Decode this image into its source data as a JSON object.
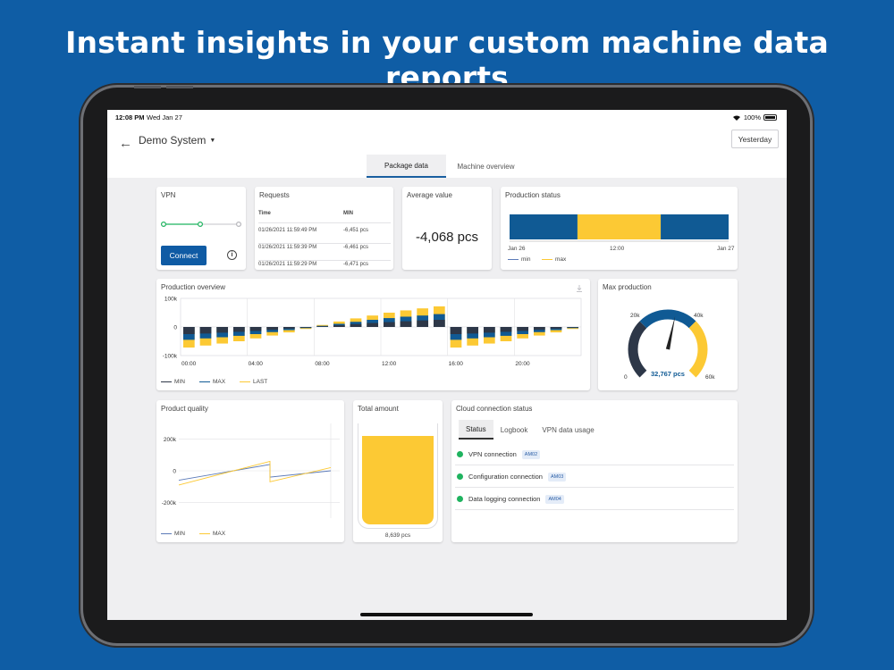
{
  "headline": "Instant insights in your custom machine data reports",
  "status_bar": {
    "time": "12:08 PM",
    "date": "Wed Jan 27",
    "battery": "100%"
  },
  "app_bar": {
    "system": "Demo System",
    "date_button": "Yesterday"
  },
  "tabs": [
    {
      "label": "Package data",
      "active": true
    },
    {
      "label": "Machine overview",
      "active": false
    }
  ],
  "vpn": {
    "title": "VPN",
    "connect_label": "Connect",
    "info_icon": "info-icon",
    "info_glyph": "i"
  },
  "requests": {
    "title": "Requests",
    "headers": [
      "Time",
      "MIN"
    ],
    "rows": [
      [
        "01/26/2021 11:59:49 PM",
        "-6,451 pcs"
      ],
      [
        "01/26/2021 11:59:39 PM",
        "-6,461 pcs"
      ],
      [
        "01/26/2021 11:59:29 PM",
        "-6,471 pcs"
      ]
    ]
  },
  "average_value": {
    "title": "Average value",
    "value": "-4,068 pcs"
  },
  "production_status": {
    "title": "Production status",
    "x_labels": [
      "Jan 26",
      "12:00",
      "Jan 27"
    ],
    "legend": [
      "min",
      "max"
    ],
    "segments": [
      {
        "from": 0,
        "to": 0.31,
        "color": "#105a94"
      },
      {
        "from": 0.31,
        "to": 0.69,
        "color": "#fcc934"
      },
      {
        "from": 0.69,
        "to": 1.0,
        "color": "#105a94"
      }
    ]
  },
  "production_overview": {
    "title": "Production overview",
    "download_icon": "download-icon",
    "legend": [
      "MIN",
      "MAX",
      "LAST"
    ]
  },
  "max_production": {
    "title": "Max production",
    "value": "32,767 pcs",
    "ticks": [
      "0",
      "20k",
      "40k",
      "60k"
    ]
  },
  "product_quality": {
    "title": "Product quality",
    "legend": [
      "MIN",
      "MAX"
    ]
  },
  "total_amount": {
    "title": "Total amount",
    "value": "8,639 pcs",
    "fill_fraction": 0.85
  },
  "cloud_status": {
    "title": "Cloud connection status",
    "tabs": [
      "Status",
      "Logbook",
      "VPN data usage"
    ],
    "rows": [
      {
        "label": "VPN connection",
        "badge": "AM02"
      },
      {
        "label": "Configuration connection",
        "badge": "AM03"
      },
      {
        "label": "Data logging connection",
        "badge": "AM04"
      }
    ]
  },
  "colors": {
    "brand": "#0f5da5",
    "navy": "#105a94",
    "dark": "#2d3748",
    "yellow": "#fcc934",
    "green": "#1fb35f"
  },
  "chart_data": [
    {
      "type": "bar",
      "title": "Production overview",
      "ylim": [
        -100000,
        100000
      ],
      "yticks": [
        "100k",
        "0",
        "-100k"
      ],
      "xticks": [
        "00:00",
        "04:00",
        "08:00",
        "12:00",
        "16:00",
        "20:00"
      ],
      "categories": [
        "00:00",
        "01:00",
        "02:00",
        "03:00",
        "04:00",
        "05:00",
        "06:00",
        "07:00",
        "08:00",
        "09:00",
        "10:00",
        "11:00",
        "12:00",
        "13:00",
        "14:00",
        "15:00",
        "16:00",
        "17:00",
        "18:00",
        "19:00",
        "20:00",
        "21:00",
        "22:00",
        "23:00"
      ],
      "series": [
        {
          "name": "MIN",
          "color": "#2d3748",
          "values": [
            -25000,
            -23000,
            -20000,
            -17000,
            -14000,
            -10000,
            -6000,
            -2000,
            2000,
            6000,
            10000,
            14000,
            17000,
            20000,
            23000,
            25000,
            -25000,
            -23000,
            -20000,
            -17000,
            -14000,
            -10000,
            -6000,
            -2000
          ]
        },
        {
          "name": "MAX",
          "color": "#105a94",
          "values": [
            -45000,
            -40000,
            -36000,
            -31000,
            -25000,
            -18000,
            -11000,
            -4000,
            4000,
            11000,
            18000,
            25000,
            31000,
            36000,
            40000,
            45000,
            -45000,
            -40000,
            -36000,
            -31000,
            -25000,
            -18000,
            -11000,
            -4000
          ]
        },
        {
          "name": "LAST",
          "color": "#fcc934",
          "values": [
            -72000,
            -65000,
            -58000,
            -50000,
            -40000,
            -30000,
            -19000,
            -7000,
            7000,
            19000,
            30000,
            40000,
            50000,
            58000,
            65000,
            72000,
            -72000,
            -65000,
            -58000,
            -50000,
            -40000,
            -30000,
            -19000,
            -7000
          ]
        }
      ]
    },
    {
      "type": "line",
      "title": "Product quality",
      "ylim": [
        -300000,
        300000
      ],
      "yticks": [
        "200k",
        "0",
        "-200k"
      ],
      "series": [
        {
          "name": "MIN",
          "color": "#5b7ab8",
          "points": [
            [
              0,
              -60000
            ],
            [
              0.6,
              40000
            ],
            [
              0.6,
              -40000
            ],
            [
              1,
              0
            ]
          ]
        },
        {
          "name": "MAX",
          "color": "#fcc934",
          "points": [
            [
              0,
              -90000
            ],
            [
              0.6,
              60000
            ],
            [
              0.6,
              -70000
            ],
            [
              1,
              20000
            ]
          ]
        }
      ]
    },
    {
      "type": "line",
      "title": "VPN",
      "series": [
        {
          "name": "status",
          "values": [
            1,
            1,
            0
          ]
        }
      ]
    },
    {
      "type": "gauge",
      "title": "Max production",
      "min": 0,
      "max": 60000,
      "value": 32767,
      "bands": [
        {
          "from": 0,
          "to": 20000,
          "color": "#2d3748"
        },
        {
          "from": 20000,
          "to": 40000,
          "color": "#105a94"
        },
        {
          "from": 40000,
          "to": 60000,
          "color": "#fcc934"
        }
      ]
    }
  ]
}
